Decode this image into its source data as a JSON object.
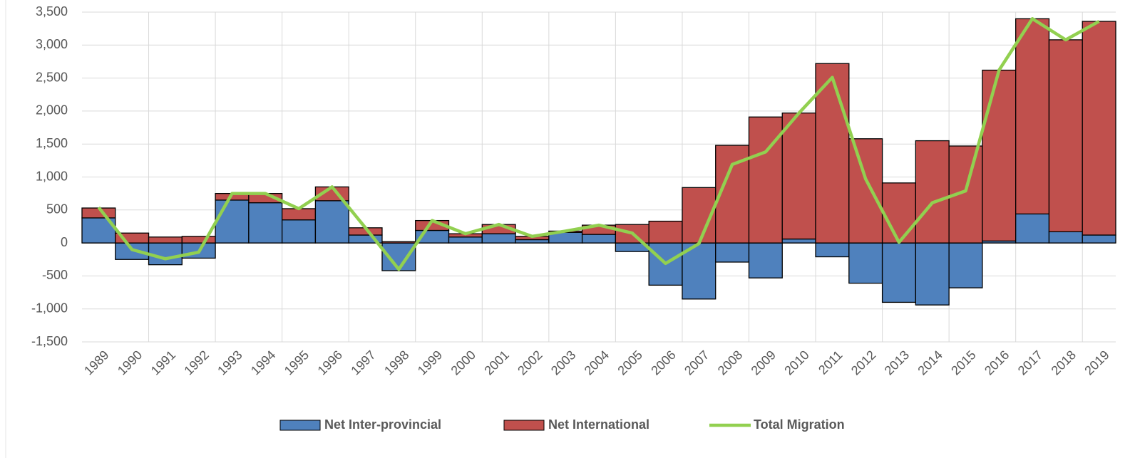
{
  "chart_data": {
    "type": "bar_line",
    "categories": [
      "1989",
      "1990",
      "1991",
      "1992",
      "1993",
      "1994",
      "1995",
      "1996",
      "1997",
      "1998",
      "1999",
      "2000",
      "2001",
      "2002",
      "2003",
      "2004",
      "2005",
      "2006",
      "2007",
      "2008",
      "2009",
      "2010",
      "2011",
      "2012",
      "2013",
      "2014",
      "2015",
      "2016",
      "2017",
      "2018",
      "2019"
    ],
    "series": [
      {
        "name": "Net Inter-provincial",
        "color": "#4f81bd",
        "kind": "bar",
        "values": [
          380,
          -250,
          -330,
          -230,
          650,
          610,
          350,
          640,
          120,
          -420,
          190,
          90,
          140,
          50,
          160,
          130,
          -130,
          -640,
          -850,
          -290,
          -530,
          60,
          -210,
          -610,
          -900,
          -940,
          -680,
          30,
          440,
          170,
          120
        ]
      },
      {
        "name": "Net International",
        "color": "#c0504d",
        "kind": "bar",
        "values": [
          150,
          150,
          90,
          100,
          100,
          140,
          170,
          210,
          110,
          20,
          150,
          50,
          140,
          50,
          20,
          140,
          280,
          330,
          840,
          1480,
          1910,
          1910,
          2720,
          1580,
          910,
          1550,
          1470,
          2590,
          2960,
          2910,
          3240
        ]
      },
      {
        "name": "Total Migration",
        "color": "#92d050",
        "kind": "line",
        "values": [
          540,
          -100,
          -240,
          -140,
          750,
          750,
          520,
          850,
          230,
          -400,
          340,
          140,
          280,
          100,
          180,
          270,
          150,
          -310,
          -10,
          1190,
          1380,
          1970,
          2510,
          970,
          10,
          610,
          790,
          2620,
          3400,
          3080,
          3360
        ]
      }
    ],
    "ylim": [
      -1500,
      3500
    ],
    "yticks": [
      {
        "value": -1500,
        "label": "-1,500"
      },
      {
        "value": -1000,
        "label": "-1,000"
      },
      -500,
      0,
      500,
      {
        "value": 1000,
        "label": "1,000"
      },
      {
        "value": 1500,
        "label": "1,500"
      },
      {
        "value": 2000,
        "label": "2,000"
      },
      {
        "value": 2500,
        "label": "2,500"
      },
      {
        "value": 3000,
        "label": "3,000"
      },
      {
        "value": 3500,
        "label": "3,500"
      }
    ],
    "grid": true,
    "legend": "bottom"
  }
}
